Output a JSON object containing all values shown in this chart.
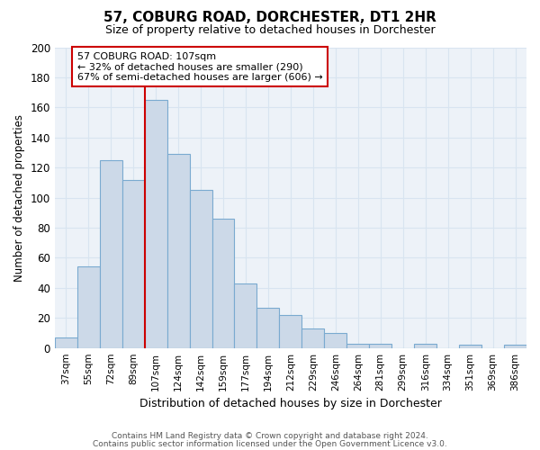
{
  "title": "57, COBURG ROAD, DORCHESTER, DT1 2HR",
  "subtitle": "Size of property relative to detached houses in Dorchester",
  "xlabel": "Distribution of detached houses by size in Dorchester",
  "ylabel": "Number of detached properties",
  "bar_labels": [
    "37sqm",
    "55sqm",
    "72sqm",
    "89sqm",
    "107sqm",
    "124sqm",
    "142sqm",
    "159sqm",
    "177sqm",
    "194sqm",
    "212sqm",
    "229sqm",
    "246sqm",
    "264sqm",
    "281sqm",
    "299sqm",
    "316sqm",
    "334sqm",
    "351sqm",
    "369sqm",
    "386sqm"
  ],
  "bar_values": [
    7,
    54,
    125,
    112,
    165,
    129,
    105,
    86,
    43,
    27,
    22,
    13,
    10,
    3,
    3,
    0,
    3,
    0,
    2,
    0,
    2
  ],
  "bar_color": "#ccd9e8",
  "bar_edge_color": "#7aaad0",
  "vline_position": 4,
  "vline_color": "#cc0000",
  "annotation_text": "57 COBURG ROAD: 107sqm\n← 32% of detached houses are smaller (290)\n67% of semi-detached houses are larger (606) →",
  "annotation_box_color": "#ffffff",
  "annotation_box_edge": "#cc0000",
  "ylim": [
    0,
    200
  ],
  "yticks": [
    0,
    20,
    40,
    60,
    80,
    100,
    120,
    140,
    160,
    180,
    200
  ],
  "footer_line1": "Contains HM Land Registry data © Crown copyright and database right 2024.",
  "footer_line2": "Contains public sector information licensed under the Open Government Licence v3.0.",
  "grid_color": "#d8e4f0",
  "background_color": "#edf2f8"
}
